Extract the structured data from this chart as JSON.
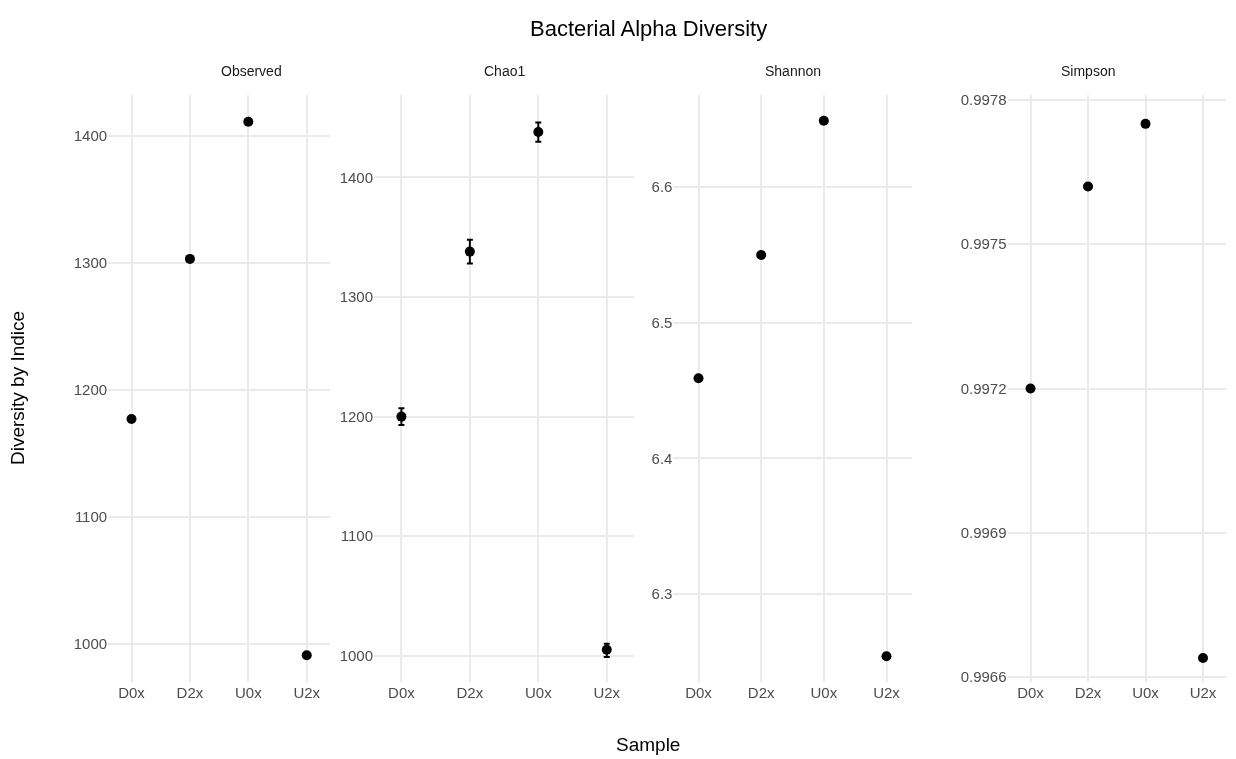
{
  "chart_data": [
    {
      "type": "scatter",
      "title": "Observed",
      "annotations": [
        "Bacterial Alpha Diversity"
      ],
      "ylabel": "Diversity by Indice",
      "categories": [
        "D0x",
        "D2x",
        "U0x",
        "U2x"
      ],
      "values": [
        1177,
        1303,
        1411,
        991
      ],
      "color": "#000000",
      "marker": "circle",
      "grid": true,
      "ylim": [
        970,
        1432
      ],
      "yticks": [
        1000,
        1100,
        1200,
        1300,
        1400
      ]
    },
    {
      "type": "scatter",
      "title": "Chao1",
      "xlabel": "Sample",
      "categories": [
        "D0x",
        "D2x",
        "U0x",
        "U2x"
      ],
      "values": [
        1200,
        1338,
        1438,
        1005
      ],
      "errors": [
        [
          1193,
          1207
        ],
        [
          1328,
          1348
        ],
        [
          1430,
          1446
        ],
        [
          999,
          1010
        ]
      ],
      "color": "#000000",
      "marker": "circle",
      "grid": true,
      "ylim": [
        978,
        1469
      ],
      "yticks": [
        1000,
        1100,
        1200,
        1300,
        1400
      ]
    },
    {
      "type": "scatter",
      "title": "Shannon",
      "categories": [
        "D0x",
        "D2x",
        "U0x",
        "U2x"
      ],
      "values": [
        6.459,
        6.55,
        6.649,
        6.254
      ],
      "color": "#000000",
      "marker": "circle",
      "grid": true,
      "ylim": [
        6.235,
        6.668
      ],
      "yticks": [
        6.3,
        6.4,
        6.5,
        6.6
      ]
    },
    {
      "type": "scatter",
      "title": "Simpson",
      "categories": [
        "D0x",
        "D2x",
        "U0x",
        "U2x"
      ],
      "values": [
        0.9972,
        0.99762,
        0.99775,
        0.99664
      ],
      "color": "#000000",
      "marker": "circle",
      "grid": true,
      "ylim": [
        0.99659,
        0.99781
      ],
      "yticks": [
        0.9966,
        0.9969,
        0.9972,
        0.9975,
        0.9978
      ]
    }
  ]
}
